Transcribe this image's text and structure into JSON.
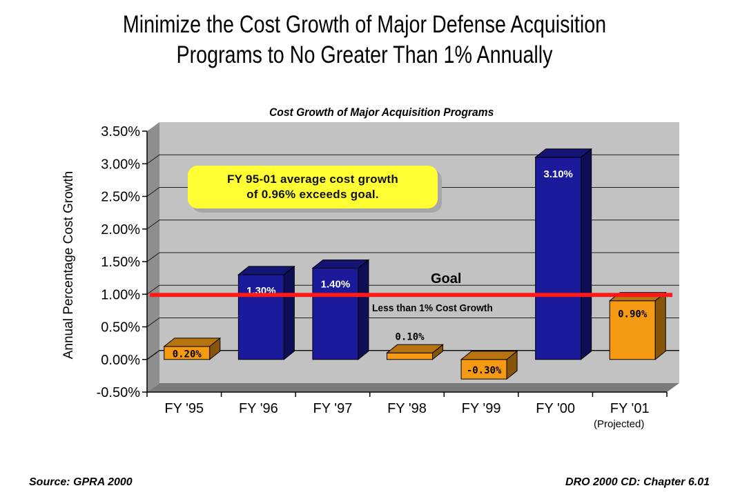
{
  "title_line1": "Minimize the Cost Growth of Major Defense Acquisition",
  "title_line2": "Programs to No Greater Than 1% Annually",
  "callout_line1": "FY 95-01 average cost growth",
  "callout_line2": "of 0.96% exceeds goal.",
  "goal_label": "Goal",
  "goal_sublabel": "Less than 1% Cost Growth",
  "projected_note": "(Projected)",
  "footer_left": "Source: GPRA 2000",
  "footer_right": "DRO 2000 CD: Chapter 6.01",
  "colors": {
    "actual": "#1a1a9a",
    "projected": "#f59a12",
    "goal_line": "#ff1a1a",
    "plot_wall": "#c2c2c2"
  },
  "chart_data": {
    "type": "bar",
    "title": "Cost Growth of Major Acquisition Programs",
    "ylabel": "Annual Percentage Cost Growth",
    "xlabel": "",
    "ylim": [
      -0.5,
      3.5
    ],
    "yticks": [
      "3.50%",
      "3.00%",
      "2.50%",
      "2.00%",
      "1.50%",
      "1.00%",
      "0.50%",
      "0.00%",
      "-0.50%"
    ],
    "categories": [
      "FY '95",
      "FY '96",
      "FY '97",
      "FY '98",
      "FY '99",
      "FY '00",
      "FY '01"
    ],
    "values": [
      0.2,
      1.3,
      1.4,
      0.1,
      -0.3,
      3.1,
      0.9
    ],
    "data_labels": [
      "0.20%",
      "1.30%",
      "1.40%",
      "0.10%",
      "-0.30%",
      "3.10%",
      "0.90%"
    ],
    "bar_colors": [
      "orange",
      "blue",
      "blue",
      "orange",
      "orange",
      "blue",
      "orange"
    ],
    "goal_value": 1.0,
    "grid": true,
    "legend": "none"
  }
}
